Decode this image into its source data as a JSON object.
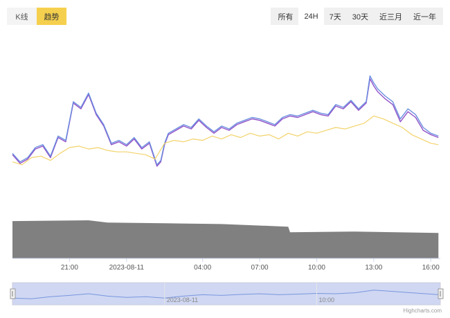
{
  "view_toggle": {
    "options": [
      {
        "label": "K线",
        "active": false
      },
      {
        "label": "趋势",
        "active": true
      }
    ]
  },
  "range_selector": {
    "options": [
      {
        "label": "所有",
        "active": false
      },
      {
        "label": "24H",
        "active": true
      },
      {
        "label": "7天",
        "active": false
      },
      {
        "label": "30天",
        "active": false
      },
      {
        "label": "近三月",
        "active": false
      },
      {
        "label": "近一年",
        "active": false
      }
    ]
  },
  "credits": "Highcharts.com",
  "chart_data": {
    "type": "line",
    "x_ticks": [
      {
        "label": "21:00",
        "hour": 3
      },
      {
        "label": "2023-08-11",
        "hour": 6
      },
      {
        "label": "04:00",
        "hour": 10
      },
      {
        "label": "07:00",
        "hour": 13
      },
      {
        "label": "10:00",
        "hour": 16
      },
      {
        "label": "13:00",
        "hour": 19
      },
      {
        "label": "16:00",
        "hour": 22
      }
    ],
    "x_range_hours": [
      0,
      22.5
    ],
    "y_range": [
      0,
      100
    ],
    "grid": false,
    "colors": {
      "blue": "#6b8fe0",
      "purple": "#9050c8",
      "yellow": "#f2d36a",
      "volume": "#808080",
      "navigator_fill": "#cfd7f2",
      "navigator_line": "#7a96e0"
    },
    "series": [
      {
        "color_key": "purple",
        "x": [
          0,
          0.4,
          0.8,
          1.2,
          1.6,
          2.0,
          2.4,
          2.8,
          3.2,
          3.6,
          4.0,
          4.4,
          4.8,
          5.2,
          5.6,
          6.0,
          6.4,
          6.8,
          7.2,
          7.6,
          7.8,
          8.0,
          8.2,
          8.6,
          9.0,
          9.4,
          9.8,
          10.2,
          10.6,
          11.0,
          11.4,
          11.8,
          12.2,
          12.6,
          13.0,
          13.4,
          13.8,
          14.2,
          14.6,
          15.0,
          15.4,
          15.8,
          16.2,
          16.6,
          17.0,
          17.4,
          17.8,
          18.2,
          18.6,
          18.8,
          19.0,
          19.2,
          19.6,
          20.0,
          20.4,
          20.8,
          21.2,
          21.6,
          22.0,
          22.4
        ],
        "values": [
          38,
          32,
          35,
          42,
          44,
          36,
          50,
          47,
          74,
          70,
          80,
          66,
          58,
          45,
          47,
          44,
          49,
          42,
          46,
          30,
          33,
          45,
          52,
          55,
          58,
          56,
          62,
          57,
          53,
          57,
          55,
          59,
          61,
          63,
          62,
          60,
          58,
          63,
          65,
          64,
          66,
          68,
          66,
          65,
          72,
          70,
          75,
          69,
          74,
          91,
          86,
          82,
          77,
          73,
          61,
          68,
          64,
          55,
          52,
          50
        ]
      },
      {
        "color_key": "blue",
        "x": [
          0,
          0.4,
          0.8,
          1.2,
          1.6,
          2.0,
          2.4,
          2.8,
          3.2,
          3.6,
          4.0,
          4.4,
          4.8,
          5.2,
          5.6,
          6.0,
          6.4,
          6.8,
          7.2,
          7.6,
          7.8,
          8.0,
          8.2,
          8.6,
          9.0,
          9.4,
          9.8,
          10.2,
          10.6,
          11.0,
          11.4,
          11.8,
          12.2,
          12.6,
          13.0,
          13.4,
          13.8,
          14.2,
          14.6,
          15.0,
          15.4,
          15.8,
          16.2,
          16.6,
          17.0,
          17.4,
          17.8,
          18.2,
          18.6,
          18.8,
          19.0,
          19.2,
          19.6,
          20.0,
          20.4,
          20.8,
          21.2,
          21.6,
          22.0,
          22.4
        ],
        "values": [
          39,
          33,
          36,
          43,
          45,
          37,
          51,
          48,
          75,
          71,
          81,
          67,
          59,
          46,
          48,
          45,
          50,
          43,
          47,
          31,
          34,
          46,
          53,
          56,
          59,
          57,
          63,
          58,
          54,
          58,
          56,
          60,
          62,
          64,
          63,
          61,
          59,
          64,
          66,
          65,
          67,
          69,
          67,
          66,
          73,
          71,
          76,
          70,
          75,
          93,
          88,
          84,
          79,
          75,
          63,
          70,
          66,
          57,
          53,
          51
        ]
      },
      {
        "color_key": "yellow",
        "x": [
          0,
          0.5,
          1.0,
          1.5,
          2.0,
          2.5,
          3.0,
          3.5,
          4.0,
          4.5,
          5.0,
          5.5,
          6.0,
          6.5,
          7.0,
          7.5,
          8.0,
          8.5,
          9.0,
          9.5,
          10.0,
          10.5,
          11.0,
          11.5,
          12.0,
          12.5,
          13.0,
          13.5,
          14.0,
          14.5,
          15.0,
          15.5,
          16.0,
          16.5,
          17.0,
          17.5,
          18.0,
          18.5,
          19.0,
          19.5,
          20.0,
          20.5,
          21.0,
          21.5,
          22.0,
          22.4
        ],
        "values": [
          33,
          31,
          36,
          37,
          34,
          39,
          43,
          44,
          42,
          43,
          41,
          40,
          40,
          39,
          38,
          35,
          46,
          48,
          47,
          49,
          48,
          51,
          49,
          52,
          50,
          53,
          51,
          52,
          49,
          53,
          51,
          54,
          53,
          55,
          57,
          56,
          58,
          60,
          65,
          63,
          60,
          57,
          52,
          49,
          46,
          45
        ]
      }
    ],
    "volume": {
      "color_key": "volume",
      "x": [
        0,
        4.0,
        5.0,
        8.0,
        11.0,
        14.5,
        14.6,
        18.0,
        22.4
      ],
      "values": [
        100,
        102,
        96,
        94,
        92,
        85,
        70,
        72,
        68
      ]
    },
    "navigator": {
      "x_ticks": [
        {
          "label": "2023-08-11",
          "hour": 8.0
        },
        {
          "label": "10:00",
          "hour": 16.0
        }
      ],
      "x": [
        0,
        1,
        2,
        3,
        4,
        5,
        6,
        7,
        8,
        9,
        10,
        11,
        12,
        13,
        14,
        15,
        16,
        17,
        18,
        19,
        20,
        21,
        22,
        22.4
      ],
      "values": [
        42,
        40,
        46,
        50,
        55,
        48,
        44,
        46,
        42,
        48,
        52,
        50,
        53,
        55,
        52,
        54,
        56,
        55,
        58,
        66,
        62,
        58,
        54,
        52
      ]
    }
  }
}
